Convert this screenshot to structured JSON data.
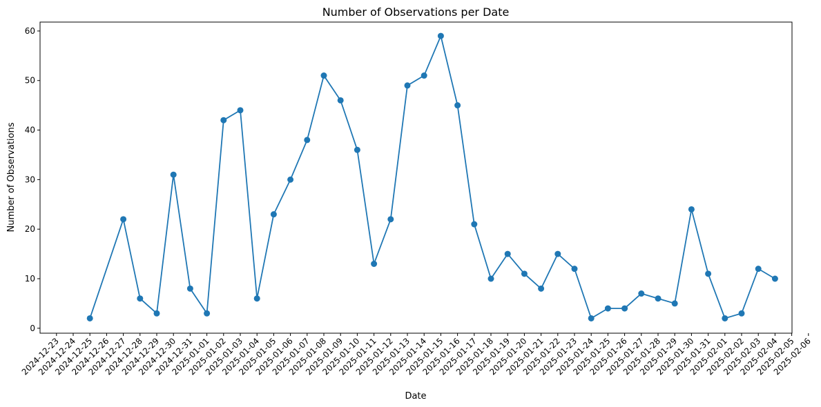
{
  "chart_data": {
    "type": "line",
    "title": "Number of Observations per Date",
    "xlabel": "Date",
    "ylabel": "Number of Observations",
    "ylim": [
      -1,
      61.8
    ],
    "yticks": [
      0,
      10,
      20,
      30,
      40,
      50,
      60
    ],
    "grid": false,
    "legend": "none",
    "line_color": "#1f77b4",
    "xticks": [
      "2024-12-23",
      "2024-12-24",
      "2024-12-25",
      "2024-12-26",
      "2024-12-27",
      "2024-12-28",
      "2024-12-29",
      "2024-12-30",
      "2024-12-31",
      "2025-01-01",
      "2025-01-02",
      "2025-01-03",
      "2025-01-04",
      "2025-01-05",
      "2025-01-06",
      "2025-01-07",
      "2025-01-08",
      "2025-01-09",
      "2025-01-10",
      "2025-01-11",
      "2025-01-12",
      "2025-01-13",
      "2025-01-14",
      "2025-01-15",
      "2025-01-16",
      "2025-01-17",
      "2025-01-18",
      "2025-01-19",
      "2025-01-20",
      "2025-01-21",
      "2025-01-22",
      "2025-01-23",
      "2025-01-24",
      "2025-01-25",
      "2025-01-26",
      "2025-01-27",
      "2025-01-28",
      "2025-01-29",
      "2025-01-30",
      "2025-01-31",
      "2025-02-01",
      "2025-02-02",
      "2025-02-03",
      "2025-02-04",
      "2025-02-05",
      "2025-02-06"
    ],
    "points": [
      {
        "x": "2024-12-25",
        "y": 2
      },
      {
        "x": "2024-12-27",
        "y": 22
      },
      {
        "x": "2024-12-28",
        "y": 6
      },
      {
        "x": "2024-12-29",
        "y": 3
      },
      {
        "x": "2024-12-30",
        "y": 31
      },
      {
        "x": "2024-12-31",
        "y": 8
      },
      {
        "x": "2025-01-01",
        "y": 3
      },
      {
        "x": "2025-01-02",
        "y": 42
      },
      {
        "x": "2025-01-03",
        "y": 44
      },
      {
        "x": "2025-01-04",
        "y": 6
      },
      {
        "x": "2025-01-05",
        "y": 23
      },
      {
        "x": "2025-01-06",
        "y": 30
      },
      {
        "x": "2025-01-07",
        "y": 38
      },
      {
        "x": "2025-01-08",
        "y": 51
      },
      {
        "x": "2025-01-09",
        "y": 46
      },
      {
        "x": "2025-01-10",
        "y": 36
      },
      {
        "x": "2025-01-11",
        "y": 13
      },
      {
        "x": "2025-01-12",
        "y": 22
      },
      {
        "x": "2025-01-13",
        "y": 49
      },
      {
        "x": "2025-01-14",
        "y": 51
      },
      {
        "x": "2025-01-15",
        "y": 59
      },
      {
        "x": "2025-01-16",
        "y": 45
      },
      {
        "x": "2025-01-17",
        "y": 21
      },
      {
        "x": "2025-01-18",
        "y": 10
      },
      {
        "x": "2025-01-19",
        "y": 15
      },
      {
        "x": "2025-01-20",
        "y": 11
      },
      {
        "x": "2025-01-21",
        "y": 8
      },
      {
        "x": "2025-01-22",
        "y": 15
      },
      {
        "x": "2025-01-23",
        "y": 12
      },
      {
        "x": "2025-01-24",
        "y": 2
      },
      {
        "x": "2025-01-25",
        "y": 4
      },
      {
        "x": "2025-01-26",
        "y": 4
      },
      {
        "x": "2025-01-27",
        "y": 7
      },
      {
        "x": "2025-01-28",
        "y": 6
      },
      {
        "x": "2025-01-29",
        "y": 5
      },
      {
        "x": "2025-01-30",
        "y": 24
      },
      {
        "x": "2025-01-31",
        "y": 11
      },
      {
        "x": "2025-02-01",
        "y": 2
      },
      {
        "x": "2025-02-02",
        "y": 3
      },
      {
        "x": "2025-02-03",
        "y": 12
      },
      {
        "x": "2025-02-04",
        "y": 10
      }
    ]
  }
}
